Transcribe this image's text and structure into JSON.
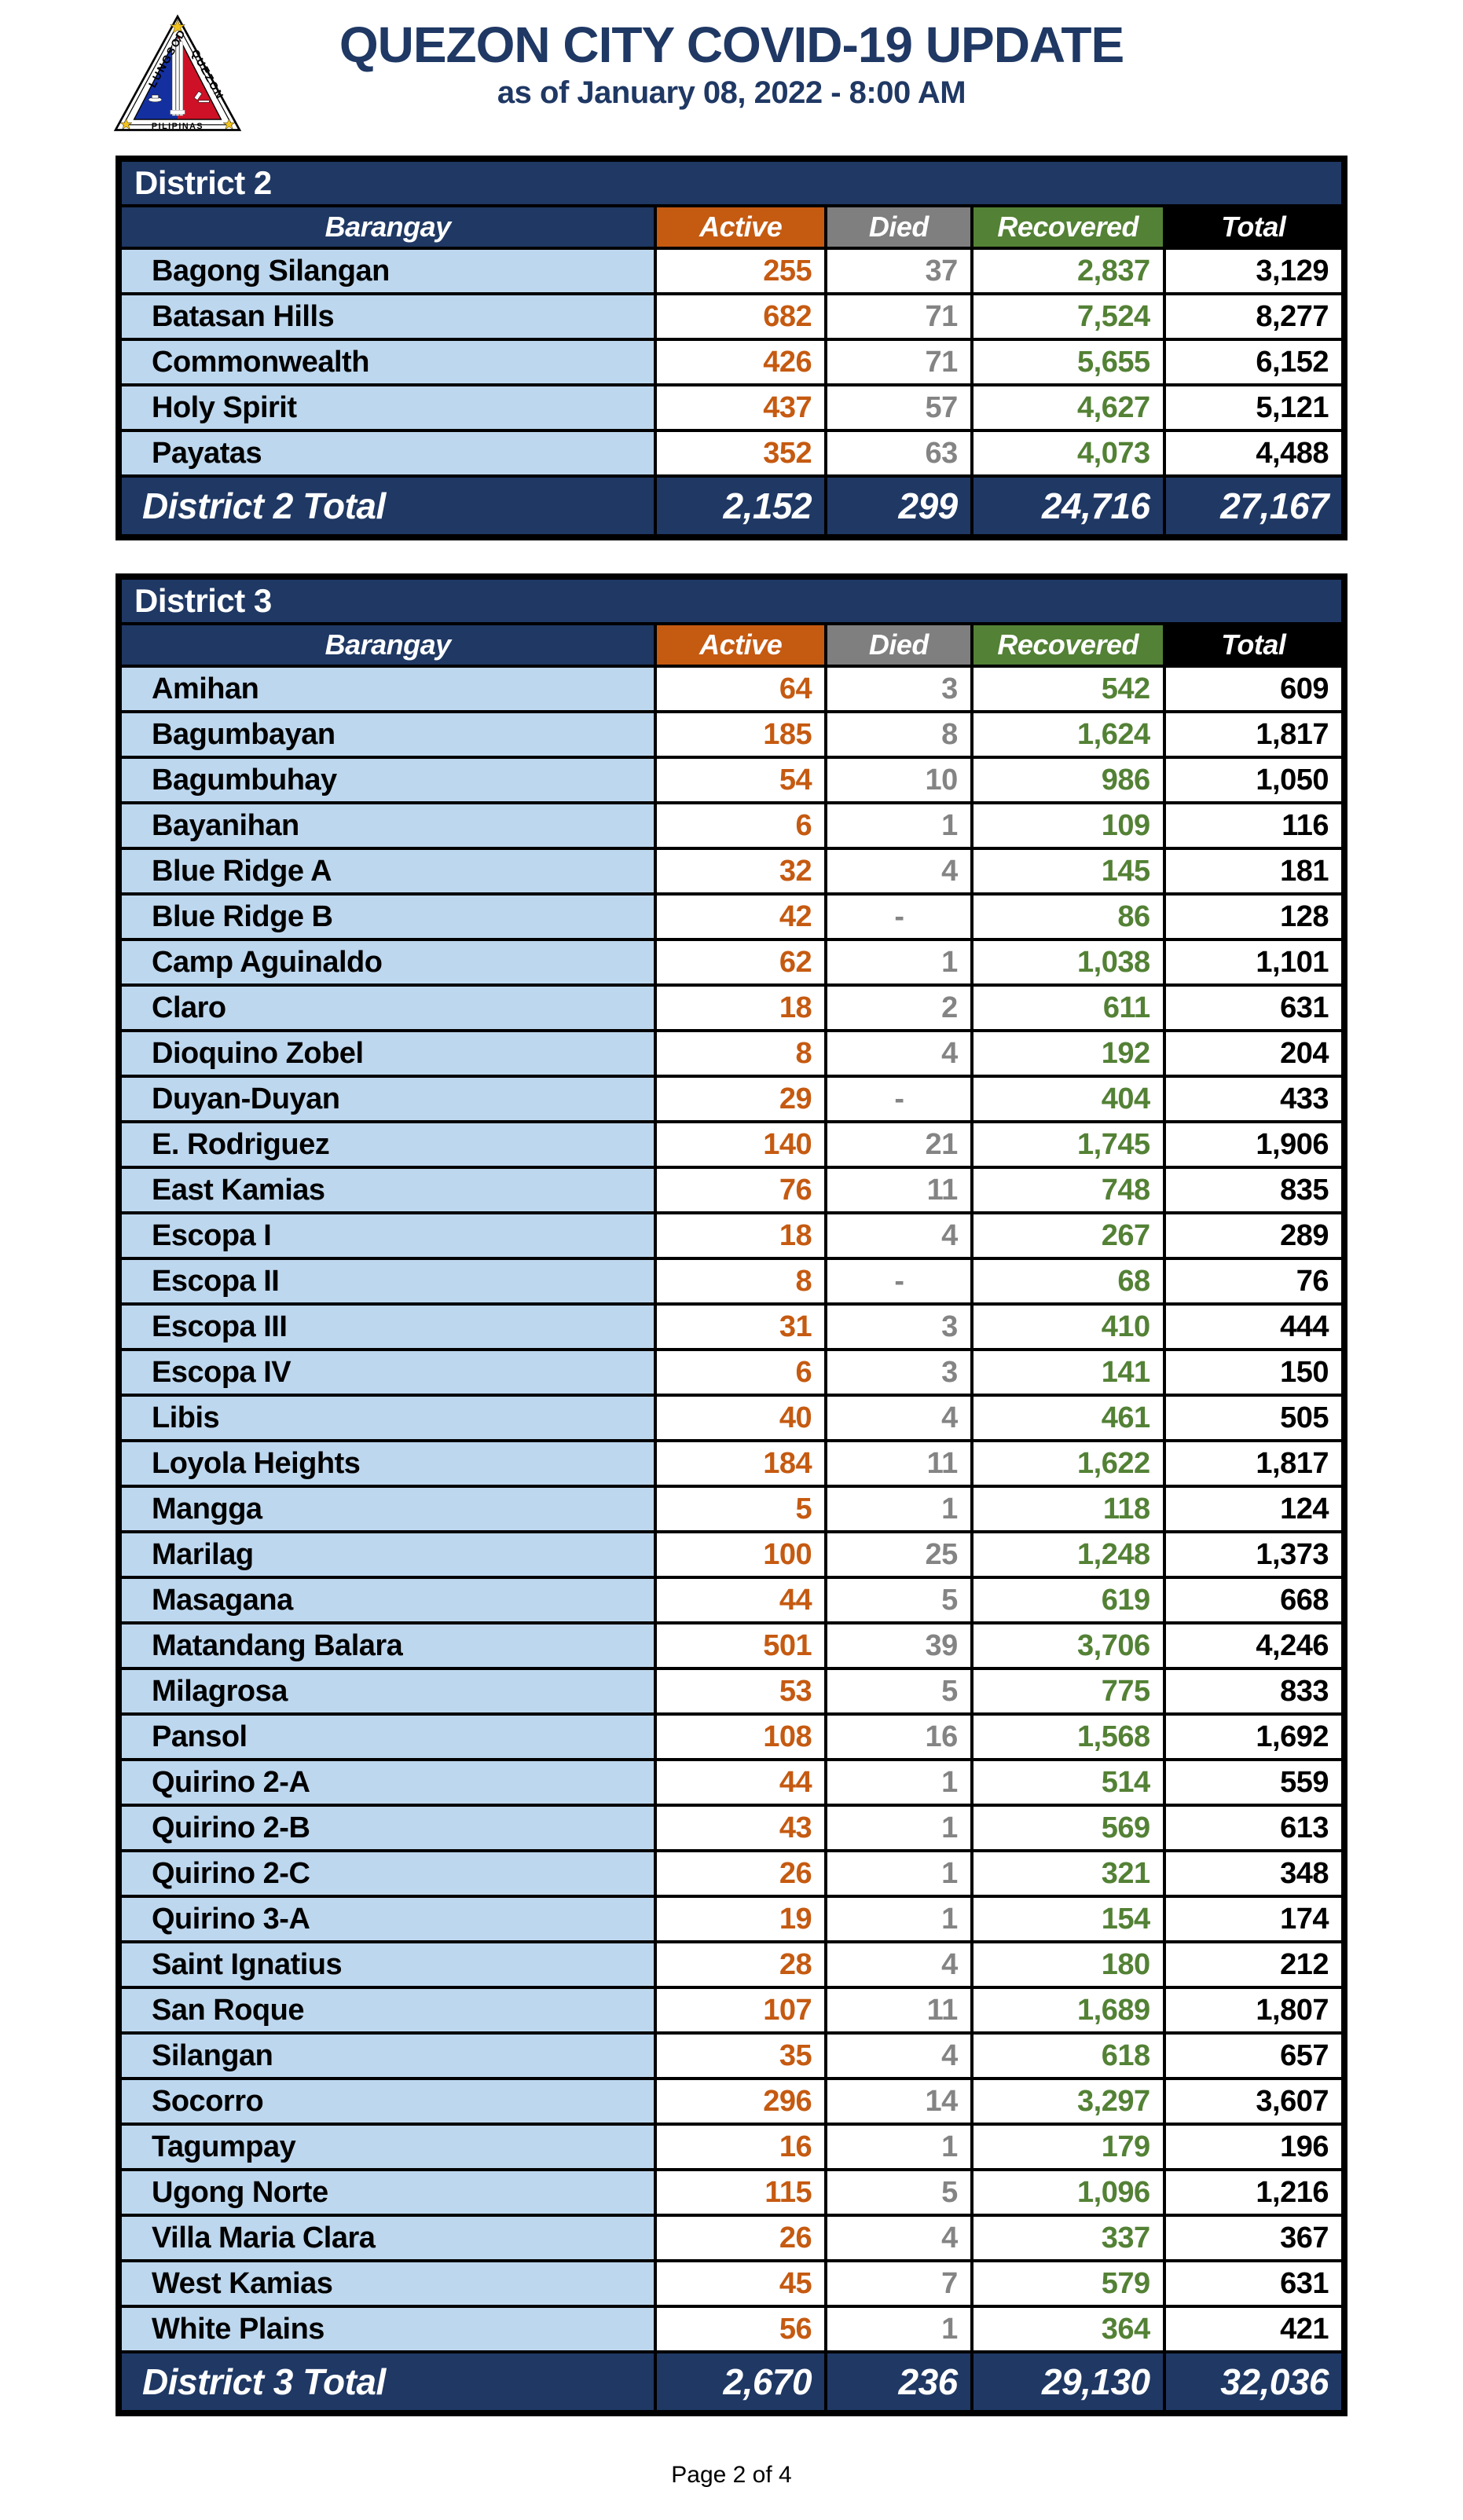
{
  "header": {
    "title": "QUEZON CITY COVID-19 UPDATE",
    "subtitle": "as of January 08, 2022 - 8:00 AM",
    "logo": {
      "text_left": "LUNGSOD",
      "text_right": "QUEZON",
      "text_bottom": "PILIPINAS"
    }
  },
  "columns": [
    "Barangay",
    "Active",
    "Died",
    "Recovered",
    "Total"
  ],
  "colors": {
    "navy": "#1F3864",
    "active_orange": "#C55A11",
    "died_gray": "#7F7F7F",
    "recovered_green": "#538135",
    "total_black": "#000000",
    "row_light_blue": "#BDD7EE",
    "border": "#000000"
  },
  "district2": {
    "title": "District 2",
    "rows": [
      {
        "barangay": "Bagong Silangan",
        "active": "255",
        "died": "37",
        "recovered": "2,837",
        "total": "3,129"
      },
      {
        "barangay": "Batasan Hills",
        "active": "682",
        "died": "71",
        "recovered": "7,524",
        "total": "8,277"
      },
      {
        "barangay": "Commonwealth",
        "active": "426",
        "died": "71",
        "recovered": "5,655",
        "total": "6,152"
      },
      {
        "barangay": "Holy Spirit",
        "active": "437",
        "died": "57",
        "recovered": "4,627",
        "total": "5,121"
      },
      {
        "barangay": "Payatas",
        "active": "352",
        "died": "63",
        "recovered": "4,073",
        "total": "4,488"
      }
    ],
    "total": {
      "label": "District 2 Total",
      "active": "2,152",
      "died": "299",
      "recovered": "24,716",
      "total": "27,167"
    }
  },
  "district3": {
    "title": "District 3",
    "rows": [
      {
        "barangay": "Amihan",
        "active": "64",
        "died": "3",
        "recovered": "542",
        "total": "609"
      },
      {
        "barangay": "Bagumbayan",
        "active": "185",
        "died": "8",
        "recovered": "1,624",
        "total": "1,817"
      },
      {
        "barangay": "Bagumbuhay",
        "active": "54",
        "died": "10",
        "recovered": "986",
        "total": "1,050"
      },
      {
        "barangay": "Bayanihan",
        "active": "6",
        "died": "1",
        "recovered": "109",
        "total": "116"
      },
      {
        "barangay": "Blue Ridge A",
        "active": "32",
        "died": "4",
        "recovered": "145",
        "total": "181"
      },
      {
        "barangay": "Blue Ridge B",
        "active": "42",
        "died": "-",
        "recovered": "86",
        "total": "128"
      },
      {
        "barangay": "Camp Aguinaldo",
        "active": "62",
        "died": "1",
        "recovered": "1,038",
        "total": "1,101"
      },
      {
        "barangay": "Claro",
        "active": "18",
        "died": "2",
        "recovered": "611",
        "total": "631"
      },
      {
        "barangay": "Dioquino Zobel",
        "active": "8",
        "died": "4",
        "recovered": "192",
        "total": "204"
      },
      {
        "barangay": "Duyan-Duyan",
        "active": "29",
        "died": "-",
        "recovered": "404",
        "total": "433"
      },
      {
        "barangay": "E. Rodriguez",
        "active": "140",
        "died": "21",
        "recovered": "1,745",
        "total": "1,906"
      },
      {
        "barangay": "East Kamias",
        "active": "76",
        "died": "11",
        "recovered": "748",
        "total": "835"
      },
      {
        "barangay": "Escopa I",
        "active": "18",
        "died": "4",
        "recovered": "267",
        "total": "289"
      },
      {
        "barangay": "Escopa II",
        "active": "8",
        "died": "-",
        "recovered": "68",
        "total": "76"
      },
      {
        "barangay": "Escopa III",
        "active": "31",
        "died": "3",
        "recovered": "410",
        "total": "444"
      },
      {
        "barangay": "Escopa IV",
        "active": "6",
        "died": "3",
        "recovered": "141",
        "total": "150"
      },
      {
        "barangay": "Libis",
        "active": "40",
        "died": "4",
        "recovered": "461",
        "total": "505"
      },
      {
        "barangay": "Loyola Heights",
        "active": "184",
        "died": "11",
        "recovered": "1,622",
        "total": "1,817"
      },
      {
        "barangay": "Mangga",
        "active": "5",
        "died": "1",
        "recovered": "118",
        "total": "124"
      },
      {
        "barangay": "Marilag",
        "active": "100",
        "died": "25",
        "recovered": "1,248",
        "total": "1,373"
      },
      {
        "barangay": "Masagana",
        "active": "44",
        "died": "5",
        "recovered": "619",
        "total": "668"
      },
      {
        "barangay": "Matandang Balara",
        "active": "501",
        "died": "39",
        "recovered": "3,706",
        "total": "4,246"
      },
      {
        "barangay": "Milagrosa",
        "active": "53",
        "died": "5",
        "recovered": "775",
        "total": "833"
      },
      {
        "barangay": "Pansol",
        "active": "108",
        "died": "16",
        "recovered": "1,568",
        "total": "1,692"
      },
      {
        "barangay": "Quirino 2-A",
        "active": "44",
        "died": "1",
        "recovered": "514",
        "total": "559"
      },
      {
        "barangay": "Quirino 2-B",
        "active": "43",
        "died": "1",
        "recovered": "569",
        "total": "613"
      },
      {
        "barangay": "Quirino 2-C",
        "active": "26",
        "died": "1",
        "recovered": "321",
        "total": "348"
      },
      {
        "barangay": "Quirino 3-A",
        "active": "19",
        "died": "1",
        "recovered": "154",
        "total": "174"
      },
      {
        "barangay": "Saint Ignatius",
        "active": "28",
        "died": "4",
        "recovered": "180",
        "total": "212"
      },
      {
        "barangay": "San Roque",
        "active": "107",
        "died": "11",
        "recovered": "1,689",
        "total": "1,807"
      },
      {
        "barangay": "Silangan",
        "active": "35",
        "died": "4",
        "recovered": "618",
        "total": "657"
      },
      {
        "barangay": "Socorro",
        "active": "296",
        "died": "14",
        "recovered": "3,297",
        "total": "3,607"
      },
      {
        "barangay": "Tagumpay",
        "active": "16",
        "died": "1",
        "recovered": "179",
        "total": "196"
      },
      {
        "barangay": "Ugong Norte",
        "active": "115",
        "died": "5",
        "recovered": "1,096",
        "total": "1,216"
      },
      {
        "barangay": "Villa Maria Clara",
        "active": "26",
        "died": "4",
        "recovered": "337",
        "total": "367"
      },
      {
        "barangay": "West Kamias",
        "active": "45",
        "died": "7",
        "recovered": "579",
        "total": "631"
      },
      {
        "barangay": "White Plains",
        "active": "56",
        "died": "1",
        "recovered": "364",
        "total": "421"
      }
    ],
    "total": {
      "label": "District 3 Total",
      "active": "2,670",
      "died": "236",
      "recovered": "29,130",
      "total": "32,036"
    }
  },
  "footer": {
    "page_label": "Page 2 of 4"
  }
}
